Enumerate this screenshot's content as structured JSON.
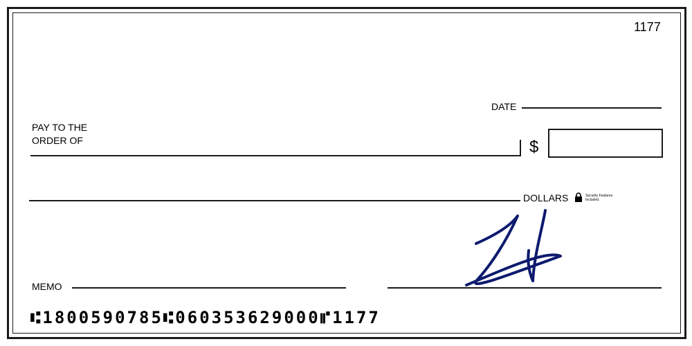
{
  "check": {
    "number": "1177",
    "date_label": "DATE",
    "pay_to_line1": "PAY TO THE",
    "pay_to_line2": "ORDER OF",
    "currency_symbol": "$",
    "dollars_label": "DOLLARS",
    "security_text": "Security Features Included.",
    "memo_label": "MEMO",
    "micr_line": "⑆1800590785⑆060353629000⑈1177",
    "signature_ink_color": "#0d1a6e",
    "icons": [
      "lock-icon",
      "signature-scribble"
    ]
  }
}
